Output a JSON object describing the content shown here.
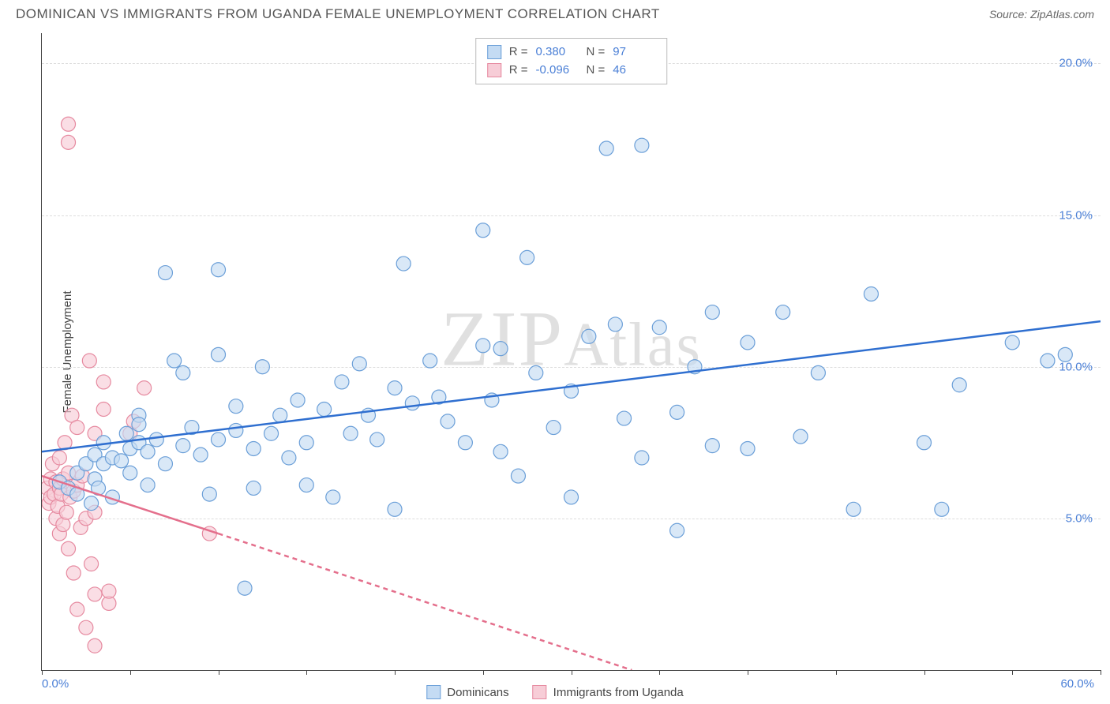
{
  "title": "DOMINICAN VS IMMIGRANTS FROM UGANDA FEMALE UNEMPLOYMENT CORRELATION CHART",
  "source_label": "Source: ZipAtlas.com",
  "ylabel": "Female Unemployment",
  "watermark": "ZIPAtlas",
  "chart": {
    "type": "scatter",
    "xlim": [
      0,
      60
    ],
    "ylim": [
      0,
      21
    ],
    "x_ticks": [
      0,
      5,
      10,
      15,
      20,
      25,
      30,
      35,
      40,
      45,
      50,
      55,
      60
    ],
    "x_tick_labels": {
      "0": "0.0%",
      "60": "60.0%"
    },
    "y_gridlines": [
      5,
      10,
      15,
      20
    ],
    "y_tick_labels": {
      "5": "5.0%",
      "10": "10.0%",
      "15": "15.0%",
      "20": "20.0%"
    },
    "background_color": "#ffffff",
    "grid_color": "#dddddd",
    "axis_color": "#444444",
    "label_fontsize": 15,
    "tick_color": "#4a7fd6",
    "marker_radius": 9,
    "marker_stroke_width": 1.2,
    "trend_line_width": 2.5
  },
  "series": {
    "dominicans": {
      "label": "Dominicans",
      "fill_color": "#c4dbf3",
      "stroke_color": "#6b9fd8",
      "line_color": "#2f6fd0",
      "R": "0.380",
      "N": "97",
      "trend": {
        "x1": 0,
        "y1": 7.2,
        "x2": 60,
        "y2": 11.5
      },
      "points": [
        [
          1,
          6.2
        ],
        [
          1.5,
          6.0
        ],
        [
          2,
          6.5
        ],
        [
          2,
          5.8
        ],
        [
          2.5,
          6.8
        ],
        [
          2.8,
          5.5
        ],
        [
          3,
          7.1
        ],
        [
          3,
          6.3
        ],
        [
          3.2,
          6.0
        ],
        [
          3.5,
          6.8
        ],
        [
          3.5,
          7.5
        ],
        [
          4,
          7.0
        ],
        [
          4,
          5.7
        ],
        [
          4.5,
          6.9
        ],
        [
          4.8,
          7.8
        ],
        [
          5,
          7.3
        ],
        [
          5,
          6.5
        ],
        [
          5.5,
          7.5
        ],
        [
          5.5,
          8.4
        ],
        [
          5.5,
          8.1
        ],
        [
          6,
          7.2
        ],
        [
          6,
          6.1
        ],
        [
          6.5,
          7.6
        ],
        [
          7,
          13.1
        ],
        [
          7,
          6.8
        ],
        [
          7.5,
          10.2
        ],
        [
          8,
          7.4
        ],
        [
          8,
          9.8
        ],
        [
          8.5,
          8.0
        ],
        [
          9,
          7.1
        ],
        [
          9.5,
          5.8
        ],
        [
          10,
          13.2
        ],
        [
          10,
          10.4
        ],
        [
          10,
          7.6
        ],
        [
          11,
          7.9
        ],
        [
          11,
          8.7
        ],
        [
          11.5,
          2.7
        ],
        [
          12,
          7.3
        ],
        [
          12,
          6.0
        ],
        [
          12.5,
          10.0
        ],
        [
          13,
          7.8
        ],
        [
          13.5,
          8.4
        ],
        [
          14,
          7.0
        ],
        [
          14.5,
          8.9
        ],
        [
          15,
          6.1
        ],
        [
          15,
          7.5
        ],
        [
          16,
          8.6
        ],
        [
          16.5,
          5.7
        ],
        [
          17,
          9.5
        ],
        [
          17.5,
          7.8
        ],
        [
          18,
          10.1
        ],
        [
          18.5,
          8.4
        ],
        [
          19,
          7.6
        ],
        [
          20,
          9.3
        ],
        [
          20,
          5.3
        ],
        [
          20.5,
          13.4
        ],
        [
          21,
          8.8
        ],
        [
          22,
          10.2
        ],
        [
          22.5,
          9.0
        ],
        [
          23,
          8.2
        ],
        [
          24,
          7.5
        ],
        [
          25,
          10.7
        ],
        [
          25,
          14.5
        ],
        [
          25.5,
          8.9
        ],
        [
          26,
          10.6
        ],
        [
          26,
          7.2
        ],
        [
          27,
          6.4
        ],
        [
          27.5,
          13.6
        ],
        [
          28,
          9.8
        ],
        [
          29,
          8.0
        ],
        [
          30,
          5.7
        ],
        [
          30,
          9.2
        ],
        [
          31,
          11.0
        ],
        [
          32,
          17.2
        ],
        [
          32.5,
          11.4
        ],
        [
          33,
          8.3
        ],
        [
          34,
          17.3
        ],
        [
          34,
          7.0
        ],
        [
          35,
          11.3
        ],
        [
          36,
          8.5
        ],
        [
          36,
          4.6
        ],
        [
          37,
          10.0
        ],
        [
          38,
          11.8
        ],
        [
          38,
          7.4
        ],
        [
          40,
          10.8
        ],
        [
          40,
          7.3
        ],
        [
          42,
          11.8
        ],
        [
          43,
          7.7
        ],
        [
          44,
          9.8
        ],
        [
          46,
          5.3
        ],
        [
          47,
          12.4
        ],
        [
          50,
          7.5
        ],
        [
          51,
          5.3
        ],
        [
          52,
          9.4
        ],
        [
          55,
          10.8
        ],
        [
          57,
          10.2
        ],
        [
          58,
          10.4
        ]
      ]
    },
    "uganda": {
      "label": "Immigrants from Uganda",
      "fill_color": "#f7cdd7",
      "stroke_color": "#e68aa0",
      "line_color": "#e46f8c",
      "R": "-0.096",
      "N": "46",
      "trend_solid": {
        "x1": 0,
        "y1": 6.4,
        "x2": 10,
        "y2": 4.5
      },
      "trend_dashed": {
        "x1": 10,
        "y1": 4.5,
        "x2": 35,
        "y2": -0.3
      },
      "points": [
        [
          0.3,
          6.0
        ],
        [
          0.4,
          5.5
        ],
        [
          0.5,
          6.3
        ],
        [
          0.5,
          5.7
        ],
        [
          0.6,
          6.8
        ],
        [
          0.7,
          5.8
        ],
        [
          0.8,
          6.2
        ],
        [
          0.8,
          5.0
        ],
        [
          0.9,
          5.4
        ],
        [
          1,
          6.0
        ],
        [
          1,
          7.0
        ],
        [
          1,
          4.5
        ],
        [
          1.1,
          5.8
        ],
        [
          1.2,
          6.3
        ],
        [
          1.2,
          4.8
        ],
        [
          1.3,
          7.5
        ],
        [
          1.4,
          5.2
        ],
        [
          1.5,
          6.5
        ],
        [
          1.5,
          4.0
        ],
        [
          1.6,
          5.7
        ],
        [
          1.7,
          8.4
        ],
        [
          1.8,
          5.9
        ],
        [
          1.8,
          3.2
        ],
        [
          2,
          8.0
        ],
        [
          2,
          6.1
        ],
        [
          2,
          2.0
        ],
        [
          2.2,
          4.7
        ],
        [
          2.3,
          6.4
        ],
        [
          2.5,
          5.0
        ],
        [
          2.5,
          1.4
        ],
        [
          2.7,
          10.2
        ],
        [
          2.8,
          3.5
        ],
        [
          3,
          7.8
        ],
        [
          3,
          5.2
        ],
        [
          3,
          2.5
        ],
        [
          3,
          0.8
        ],
        [
          3.5,
          8.6
        ],
        [
          3.5,
          9.5
        ],
        [
          3.8,
          2.2
        ],
        [
          3.8,
          2.6
        ],
        [
          5,
          7.8
        ],
        [
          5.2,
          8.2
        ],
        [
          5.8,
          9.3
        ],
        [
          9.5,
          4.5
        ],
        [
          1.5,
          18.0
        ],
        [
          1.5,
          17.4
        ]
      ]
    }
  },
  "legend_stats": {
    "R_label": "R =",
    "N_label": "N ="
  }
}
